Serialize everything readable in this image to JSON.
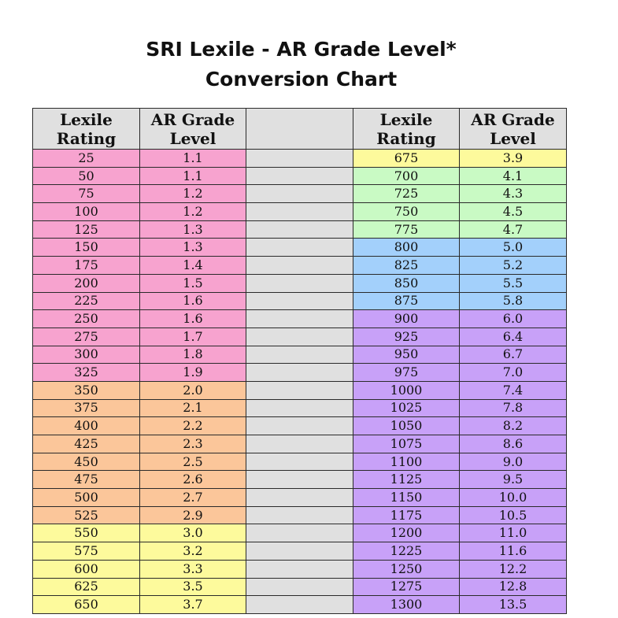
{
  "title": {
    "line1": "SRI Lexile - AR Grade Level*",
    "line2": "Conversion Chart"
  },
  "colors": {
    "pink": "#f7a3cf",
    "orange": "#fbc69a",
    "yellow": "#fdfa9c",
    "green": "#c9fac4",
    "blue": "#a3d0fb",
    "purple": "#c8a1f8",
    "gray": "#e0e0e0"
  },
  "headers": {
    "left": {
      "lexile": [
        "Lexile",
        "Rating"
      ],
      "grade": [
        "AR Grade",
        "Level"
      ]
    },
    "right": {
      "lexile": [
        "Lexile",
        "Rating"
      ],
      "grade": [
        "AR Grade",
        "Level"
      ]
    }
  },
  "left_rows": [
    {
      "lexile": "25",
      "grade": "1.1",
      "color": "pink"
    },
    {
      "lexile": "50",
      "grade": "1.1",
      "color": "pink"
    },
    {
      "lexile": "75",
      "grade": "1.2",
      "color": "pink"
    },
    {
      "lexile": "100",
      "grade": "1.2",
      "color": "pink"
    },
    {
      "lexile": "125",
      "grade": "1.3",
      "color": "pink"
    },
    {
      "lexile": "150",
      "grade": "1.3",
      "color": "pink"
    },
    {
      "lexile": "175",
      "grade": "1.4",
      "color": "pink"
    },
    {
      "lexile": "200",
      "grade": "1.5",
      "color": "pink"
    },
    {
      "lexile": "225",
      "grade": "1.6",
      "color": "pink"
    },
    {
      "lexile": "250",
      "grade": "1.6",
      "color": "pink"
    },
    {
      "lexile": "275",
      "grade": "1.7",
      "color": "pink"
    },
    {
      "lexile": "300",
      "grade": "1.8",
      "color": "pink"
    },
    {
      "lexile": "325",
      "grade": "1.9",
      "color": "pink"
    },
    {
      "lexile": "350",
      "grade": "2.0",
      "color": "orange"
    },
    {
      "lexile": "375",
      "grade": "2.1",
      "color": "orange"
    },
    {
      "lexile": "400",
      "grade": "2.2",
      "color": "orange"
    },
    {
      "lexile": "425",
      "grade": "2.3",
      "color": "orange"
    },
    {
      "lexile": "450",
      "grade": "2.5",
      "color": "orange"
    },
    {
      "lexile": "475",
      "grade": "2.6",
      "color": "orange"
    },
    {
      "lexile": "500",
      "grade": "2.7",
      "color": "orange"
    },
    {
      "lexile": "525",
      "grade": "2.9",
      "color": "orange"
    },
    {
      "lexile": "550",
      "grade": "3.0",
      "color": "yellow"
    },
    {
      "lexile": "575",
      "grade": "3.2",
      "color": "yellow"
    },
    {
      "lexile": "600",
      "grade": "3.3",
      "color": "yellow"
    },
    {
      "lexile": "625",
      "grade": "3.5",
      "color": "yellow"
    },
    {
      "lexile": "650",
      "grade": "3.7",
      "color": "yellow"
    }
  ],
  "right_rows": [
    {
      "lexile": "675",
      "grade": "3.9",
      "color": "yellow"
    },
    {
      "lexile": "700",
      "grade": "4.1",
      "color": "green"
    },
    {
      "lexile": "725",
      "grade": "4.3",
      "color": "green"
    },
    {
      "lexile": "750",
      "grade": "4.5",
      "color": "green"
    },
    {
      "lexile": "775",
      "grade": "4.7",
      "color": "green"
    },
    {
      "lexile": "800",
      "grade": "5.0",
      "color": "blue"
    },
    {
      "lexile": "825",
      "grade": "5.2",
      "color": "blue"
    },
    {
      "lexile": "850",
      "grade": "5.5",
      "color": "blue"
    },
    {
      "lexile": "875",
      "grade": "5.8",
      "color": "blue"
    },
    {
      "lexile": "900",
      "grade": "6.0",
      "color": "purple"
    },
    {
      "lexile": "925",
      "grade": "6.4",
      "color": "purple"
    },
    {
      "lexile": "950",
      "grade": "6.7",
      "color": "purple"
    },
    {
      "lexile": "975",
      "grade": "7.0",
      "color": "purple"
    },
    {
      "lexile": "1000",
      "grade": "7.4",
      "color": "purple"
    },
    {
      "lexile": "1025",
      "grade": "7.8",
      "color": "purple"
    },
    {
      "lexile": "1050",
      "grade": "8.2",
      "color": "purple"
    },
    {
      "lexile": "1075",
      "grade": "8.6",
      "color": "purple"
    },
    {
      "lexile": "1100",
      "grade": "9.0",
      "color": "purple"
    },
    {
      "lexile": "1125",
      "grade": "9.5",
      "color": "purple"
    },
    {
      "lexile": "1150",
      "grade": "10.0",
      "color": "purple"
    },
    {
      "lexile": "1175",
      "grade": "10.5",
      "color": "purple"
    },
    {
      "lexile": "1200",
      "grade": "11.0",
      "color": "purple"
    },
    {
      "lexile": "1225",
      "grade": "11.6",
      "color": "purple"
    },
    {
      "lexile": "1250",
      "grade": "12.2",
      "color": "purple"
    },
    {
      "lexile": "1275",
      "grade": "12.8",
      "color": "purple"
    },
    {
      "lexile": "1300",
      "grade": "13.5",
      "color": "purple"
    }
  ]
}
